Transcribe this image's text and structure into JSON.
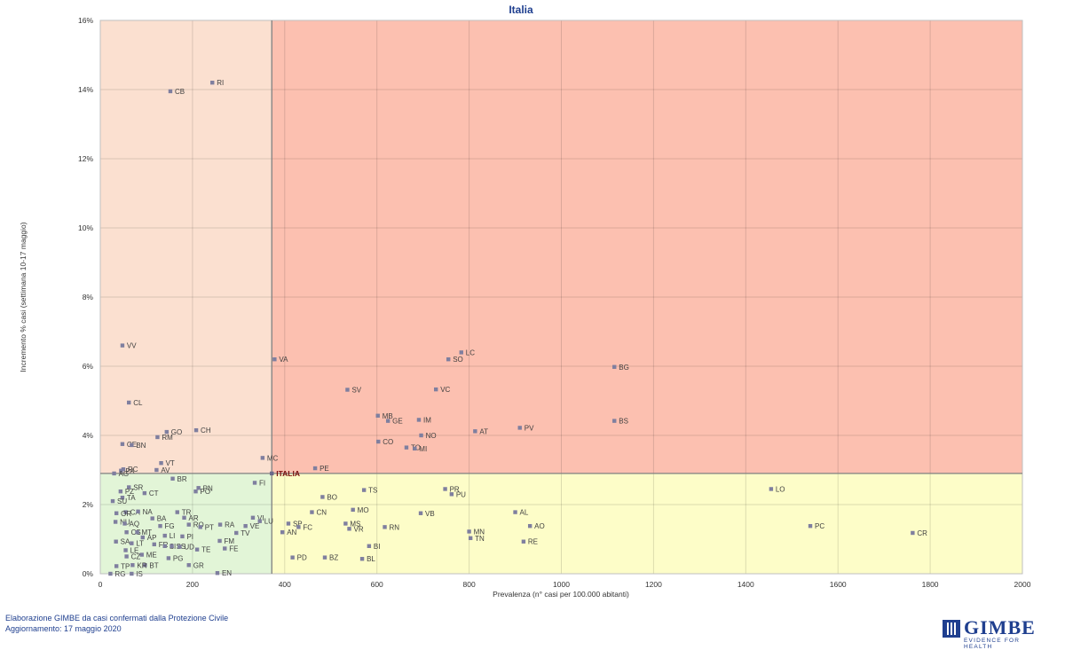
{
  "chart_data": {
    "type": "scatter",
    "title": "Italia",
    "xlabel": "Prevalenza (n° casi per 100.000 abitanti)",
    "ylabel": "Incremento % casi (settimana 10-17 maggio)",
    "xlim": [
      0,
      2000
    ],
    "ylim": [
      0,
      16
    ],
    "x_ticks": [
      0,
      200,
      400,
      600,
      800,
      1000,
      1200,
      1400,
      1600,
      1800,
      2000
    ],
    "y_ticks": [
      0,
      2,
      4,
      6,
      8,
      10,
      12,
      14,
      16
    ],
    "y_tick_format": "percent",
    "grid": true,
    "reference_point": {
      "label": "ITALIA",
      "x": 372,
      "y": 2.9
    },
    "quadrant_colors": {
      "top_left": "#fbe0d0",
      "top_right": "#fcc0b0",
      "bottom_left": "#e2f5d7",
      "bottom_right": "#fdfdc8"
    },
    "marker_color": "#7f7f9f",
    "points": [
      {
        "label": "RI",
        "x": 243,
        "y": 14.2
      },
      {
        "label": "CB",
        "x": 152,
        "y": 13.95
      },
      {
        "label": "VV",
        "x": 48,
        "y": 6.6
      },
      {
        "label": "VA",
        "x": 378,
        "y": 6.2
      },
      {
        "label": "LC",
        "x": 783,
        "y": 6.4
      },
      {
        "label": "SO",
        "x": 755,
        "y": 6.2
      },
      {
        "label": "BG",
        "x": 1115,
        "y": 5.98
      },
      {
        "label": "SV",
        "x": 536,
        "y": 5.32
      },
      {
        "label": "VC",
        "x": 728,
        "y": 5.33
      },
      {
        "label": "CL",
        "x": 62,
        "y": 4.95
      },
      {
        "label": "MB",
        "x": 602,
        "y": 4.57
      },
      {
        "label": "GE",
        "x": 624,
        "y": 4.42
      },
      {
        "label": "IM",
        "x": 691,
        "y": 4.45
      },
      {
        "label": "BS",
        "x": 1115,
        "y": 4.42
      },
      {
        "label": "PV",
        "x": 910,
        "y": 4.22
      },
      {
        "label": "AT",
        "x": 813,
        "y": 4.12
      },
      {
        "label": "NO",
        "x": 696,
        "y": 4.0
      },
      {
        "label": "CO",
        "x": 603,
        "y": 3.82
      },
      {
        "label": "TO",
        "x": 664,
        "y": 3.65
      },
      {
        "label": "MI",
        "x": 682,
        "y": 3.62
      },
      {
        "label": "GO",
        "x": 144,
        "y": 4.1
      },
      {
        "label": "CH",
        "x": 208,
        "y": 4.15
      },
      {
        "label": "RM",
        "x": 124,
        "y": 3.95
      },
      {
        "label": "CE",
        "x": 48,
        "y": 3.75
      },
      {
        "label": "BN",
        "x": 68,
        "y": 3.72
      },
      {
        "label": "PA",
        "x": 45,
        "y": 2.98
      },
      {
        "label": "RC",
        "x": 50,
        "y": 3.02
      },
      {
        "label": "VT",
        "x": 132,
        "y": 3.2
      },
      {
        "label": "AV",
        "x": 122,
        "y": 3.0
      },
      {
        "label": "AG",
        "x": 30,
        "y": 2.9
      },
      {
        "label": "MC",
        "x": 352,
        "y": 3.35
      },
      {
        "label": "PE",
        "x": 466,
        "y": 3.05
      },
      {
        "label": "FI",
        "x": 335,
        "y": 2.63
      },
      {
        "label": "BR",
        "x": 157,
        "y": 2.75
      },
      {
        "label": "PN",
        "x": 213,
        "y": 2.48
      },
      {
        "label": "PO",
        "x": 207,
        "y": 2.38
      },
      {
        "label": "SR",
        "x": 62,
        "y": 2.5
      },
      {
        "label": "PZ",
        "x": 44,
        "y": 2.38
      },
      {
        "label": "CT",
        "x": 96,
        "y": 2.33
      },
      {
        "label": "TA",
        "x": 48,
        "y": 2.2
      },
      {
        "label": "SU",
        "x": 27,
        "y": 2.1
      },
      {
        "label": "CA",
        "x": 55,
        "y": 1.78
      },
      {
        "label": "NA",
        "x": 82,
        "y": 1.8
      },
      {
        "label": "OR",
        "x": 35,
        "y": 1.75
      },
      {
        "label": "BA",
        "x": 113,
        "y": 1.6
      },
      {
        "label": "TR",
        "x": 167,
        "y": 1.78
      },
      {
        "label": "AR",
        "x": 182,
        "y": 1.62
      },
      {
        "label": "RO",
        "x": 192,
        "y": 1.42
      },
      {
        "label": "NU",
        "x": 33,
        "y": 1.5
      },
      {
        "label": "AQ",
        "x": 53,
        "y": 1.45
      },
      {
        "label": "FG",
        "x": 130,
        "y": 1.38
      },
      {
        "label": "PT",
        "x": 217,
        "y": 1.35
      },
      {
        "label": "RA",
        "x": 260,
        "y": 1.42
      },
      {
        "label": "VI",
        "x": 331,
        "y": 1.62
      },
      {
        "label": "LU",
        "x": 346,
        "y": 1.52
      },
      {
        "label": "VE",
        "x": 315,
        "y": 1.38
      },
      {
        "label": "TV",
        "x": 295,
        "y": 1.18
      },
      {
        "label": "CS",
        "x": 57,
        "y": 1.2
      },
      {
        "label": "MT",
        "x": 80,
        "y": 1.2
      },
      {
        "label": "AP",
        "x": 92,
        "y": 1.05
      },
      {
        "label": "LI",
        "x": 140,
        "y": 1.1
      },
      {
        "label": "PI",
        "x": 178,
        "y": 1.08
      },
      {
        "label": "FM",
        "x": 259,
        "y": 0.95
      },
      {
        "label": "SA",
        "x": 34,
        "y": 0.93
      },
      {
        "label": "LT",
        "x": 68,
        "y": 0.88
      },
      {
        "label": "FR",
        "x": 117,
        "y": 0.85
      },
      {
        "label": "SI",
        "x": 140,
        "y": 0.8
      },
      {
        "label": "SS",
        "x": 155,
        "y": 0.8
      },
      {
        "label": "UD",
        "x": 172,
        "y": 0.78
      },
      {
        "label": "FE",
        "x": 270,
        "y": 0.73
      },
      {
        "label": "TE",
        "x": 210,
        "y": 0.7
      },
      {
        "label": "LE",
        "x": 55,
        "y": 0.68
      },
      {
        "label": "ME",
        "x": 90,
        "y": 0.55
      },
      {
        "label": "CZ",
        "x": 57,
        "y": 0.5
      },
      {
        "label": "PG",
        "x": 148,
        "y": 0.45
      },
      {
        "label": "GR",
        "x": 192,
        "y": 0.25
      },
      {
        "label": "BT",
        "x": 97,
        "y": 0.25
      },
      {
        "label": "KR",
        "x": 70,
        "y": 0.25
      },
      {
        "label": "TP",
        "x": 35,
        "y": 0.22
      },
      {
        "label": "EN",
        "x": 254,
        "y": 0.02
      },
      {
        "label": "TS",
        "x": 572,
        "y": 2.42
      },
      {
        "label": "PR",
        "x": 748,
        "y": 2.45
      },
      {
        "label": "PU",
        "x": 762,
        "y": 2.3
      },
      {
        "label": "BO",
        "x": 482,
        "y": 2.22
      },
      {
        "label": "MO",
        "x": 548,
        "y": 1.85
      },
      {
        "label": "CN",
        "x": 459,
        "y": 1.78
      },
      {
        "label": "VB",
        "x": 695,
        "y": 1.75
      },
      {
        "label": "AL",
        "x": 900,
        "y": 1.78
      },
      {
        "label": "LO",
        "x": 1455,
        "y": 2.45
      },
      {
        "label": "PC",
        "x": 1540,
        "y": 1.38
      },
      {
        "label": "CR",
        "x": 1762,
        "y": 1.18
      },
      {
        "label": "SP",
        "x": 408,
        "y": 1.45
      },
      {
        "label": "FC",
        "x": 430,
        "y": 1.35
      },
      {
        "label": "AN",
        "x": 395,
        "y": 1.2
      },
      {
        "label": "MS",
        "x": 532,
        "y": 1.45
      },
      {
        "label": "VR",
        "x": 540,
        "y": 1.3
      },
      {
        "label": "RN",
        "x": 617,
        "y": 1.35
      },
      {
        "label": "AO",
        "x": 932,
        "y": 1.38
      },
      {
        "label": "MN",
        "x": 800,
        "y": 1.22
      },
      {
        "label": "TN",
        "x": 803,
        "y": 1.03
      },
      {
        "label": "RE",
        "x": 918,
        "y": 0.93
      },
      {
        "label": "BI",
        "x": 583,
        "y": 0.8
      },
      {
        "label": "PD",
        "x": 417,
        "y": 0.47
      },
      {
        "label": "BZ",
        "x": 487,
        "y": 0.47
      },
      {
        "label": "BL",
        "x": 568,
        "y": 0.43
      },
      {
        "label": "RG",
        "x": 22,
        "y": 0.0
      },
      {
        "label": "IS",
        "x": 68,
        "y": 0.0
      }
    ]
  },
  "footer": {
    "line1": "Elaborazione GIMBE da casi confermati dalla Protezione Civile",
    "line2": "Aggiornamento: 17 maggio 2020"
  },
  "logo": {
    "name": "GIMBE",
    "tagline": "EVIDENCE FOR HEALTH"
  }
}
